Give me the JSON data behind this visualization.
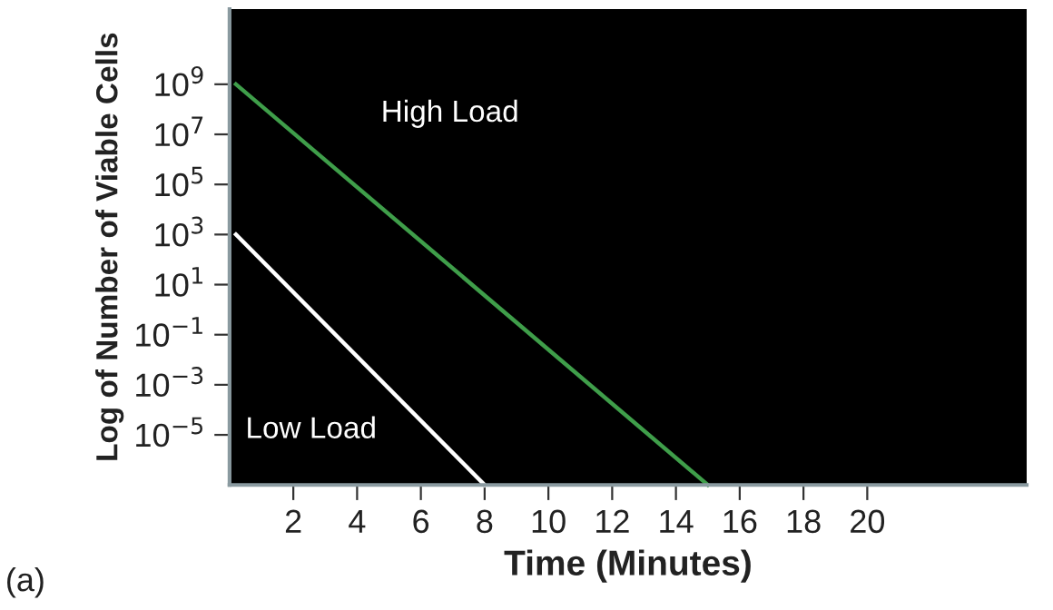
{
  "chart_data": {
    "type": "line",
    "xlabel": "Time (Minutes)",
    "ylabel": "Log of Number of Viable Cells",
    "log": "y",
    "grid": false,
    "legend": false,
    "marker": "none",
    "line_style": "solid",
    "xlim": [
      0,
      25
    ],
    "xticks": [
      2,
      4,
      6,
      8,
      10,
      12,
      14,
      16,
      18,
      20
    ],
    "ylim": [
      1e-07,
      1000000000000.0
    ],
    "yticks": [
      {
        "value": 1000000000.0,
        "label": "10$^{9}$"
      },
      {
        "value": 10000000.0,
        "label": "10$^{7}$"
      },
      {
        "value": 100000.0,
        "label": "10$^{5}$"
      },
      {
        "value": 1000.0,
        "label": "10$^{3}$"
      },
      {
        "value": 10,
        "label": "10$^{1}$"
      },
      {
        "value": 0.1,
        "label": "10$^{−1}$"
      },
      {
        "value": 0.001,
        "label": "10$^{−3}$"
      },
      {
        "value": 1e-05,
        "label": "10$^{−5}$"
      }
    ],
    "series": [
      {
        "color": "#3f9e4a",
        "x": [
          0.2,
          15
        ],
        "values": [
          1000000000.0,
          1e-07
        ]
      },
      {
        "color": "#ffffff",
        "x": [
          0.2,
          8
        ],
        "values": [
          1000.0,
          1e-07
        ]
      }
    ],
    "annotations": [
      "High Load",
      "Low Load",
      "(a)"
    ]
  }
}
